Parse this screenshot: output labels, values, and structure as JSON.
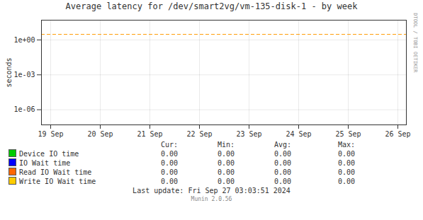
{
  "chart_data": {
    "type": "line",
    "title": "Average latency for /dev/smart2vg/vm-135-disk-1 - by week",
    "ylabel": "seconds",
    "categories": [
      "19 Sep",
      "20 Sep",
      "21 Sep",
      "22 Sep",
      "23 Sep",
      "24 Sep",
      "25 Sep",
      "26 Sep"
    ],
    "series": [
      {
        "name": "Device IO time",
        "color": "#00cc00",
        "values": [
          null,
          null,
          null,
          null,
          null,
          null,
          null,
          null
        ]
      },
      {
        "name": "IO Wait time",
        "color": "#0000ff",
        "values": [
          null,
          null,
          null,
          null,
          null,
          null,
          null,
          null
        ]
      },
      {
        "name": "Read IO Wait time",
        "color": "#ff6600",
        "values": [
          null,
          null,
          null,
          null,
          null,
          null,
          null,
          null
        ]
      },
      {
        "name": "Write IO Wait time",
        "color": "#ffcc00",
        "values": [
          null,
          null,
          null,
          null,
          null,
          null,
          null,
          null
        ]
      }
    ],
    "log": "y",
    "ylim": [
      5e-08,
      50
    ],
    "yticks": [
      {
        "value": 1e-06,
        "label": "1e-06"
      },
      {
        "value": 0.001,
        "label": "1e-03"
      },
      {
        "value": 1,
        "label": "1e+00"
      }
    ],
    "grid": true,
    "legend": "bottom",
    "hline": {
      "value": 3.0,
      "color": "#ff9900",
      "line_style": "dashed"
    },
    "table": {
      "columns": [
        "Cur:",
        "Min:",
        "Avg:",
        "Max:"
      ],
      "rows": [
        [
          {
            "value": 0,
            "label": "0.00"
          },
          {
            "value": 0,
            "label": "0.00"
          },
          {
            "value": 0,
            "label": "0.00"
          },
          {
            "value": 0,
            "label": "0.00"
          }
        ],
        [
          {
            "value": 0,
            "label": "0.00"
          },
          {
            "value": 0,
            "label": "0.00"
          },
          {
            "value": 0,
            "label": "0.00"
          },
          {
            "value": 0,
            "label": "0.00"
          }
        ],
        [
          {
            "value": 0,
            "label": "0.00"
          },
          {
            "value": 0,
            "label": "0.00"
          },
          {
            "value": 0,
            "label": "0.00"
          },
          {
            "value": 0,
            "label": "0.00"
          }
        ],
        [
          {
            "value": 0,
            "label": "0.00"
          },
          {
            "value": 0,
            "label": "0.00"
          },
          {
            "value": 0,
            "label": "0.00"
          },
          {
            "value": 0,
            "label": "0.00"
          }
        ]
      ]
    },
    "annotations": [
      "RRDTOOL / TOBI OETIKER",
      "Last update: Fri Sep 27 03:03:51 2024",
      "Munin 2.0.56"
    ]
  }
}
